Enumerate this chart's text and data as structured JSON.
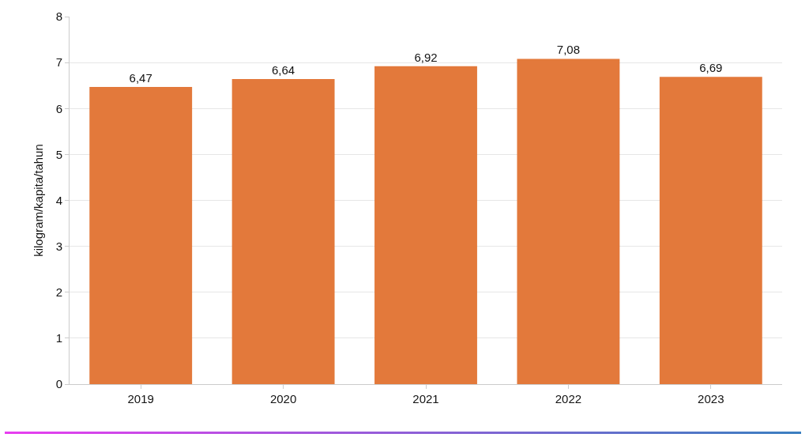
{
  "chart_data": {
    "type": "bar",
    "ylabel": "kilogram/kapita/tahun",
    "categories": [
      "2019",
      "2020",
      "2021",
      "2022",
      "2023"
    ],
    "values": [
      6.47,
      6.64,
      6.92,
      7.08,
      6.69
    ],
    "value_labels": [
      "6,47",
      "6,64",
      "6,92",
      "7,08",
      "6,69"
    ],
    "color": "#e3793b",
    "ylim": [
      0,
      8
    ],
    "yticks": [
      0,
      1,
      2,
      3,
      4,
      5,
      6,
      7,
      8
    ],
    "grid": "y",
    "legend": false
  }
}
